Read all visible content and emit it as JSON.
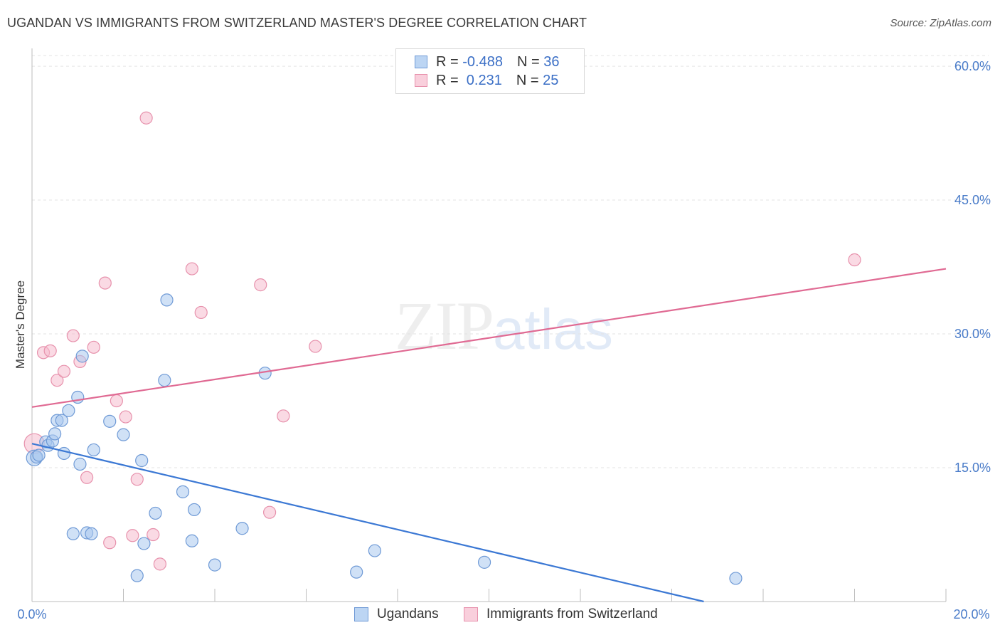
{
  "header": {
    "title": "UGANDAN VS IMMIGRANTS FROM SWITZERLAND MASTER'S DEGREE CORRELATION CHART",
    "source": "Source: ZipAtlas.com"
  },
  "watermark": {
    "zip": "ZIP",
    "atlas": "atlas"
  },
  "legend": {
    "rows": [
      {
        "r_label": "R = ",
        "r_value": "-0.488",
        "n_label": "N = ",
        "n_value": "36"
      },
      {
        "r_label": "R = ",
        "r_value": " 0.231",
        "n_label": "N = ",
        "n_value": "25"
      }
    ]
  },
  "colors": {
    "ugandans_fill": "#a9c8ee",
    "ugandans_stroke": "#6f9ad6",
    "ugandans_line": "#3b78d4",
    "swiss_fill": "#f6bccd",
    "swiss_stroke": "#e791ac",
    "swiss_line": "#e06a93"
  },
  "chart_data": {
    "type": "scatter",
    "title": "UGANDAN VS IMMIGRANTS FROM SWITZERLAND MASTER'S DEGREE CORRELATION CHART",
    "xlabel": "",
    "ylabel": "Master's Degree",
    "xlim": [
      0,
      20
    ],
    "ylim": [
      0,
      62
    ],
    "x_tick_labels": [
      "0.0%",
      "20.0%"
    ],
    "y_ticks": [
      15,
      30,
      45,
      60
    ],
    "y_tick_labels": [
      "15.0%",
      "30.0%",
      "45.0%",
      "60.0%"
    ],
    "grid": true,
    "series": [
      {
        "name": "Ugandans",
        "r": -0.488,
        "n": 36,
        "trend": {
          "x": [
            0,
            14.7
          ],
          "y": [
            17.7,
            0
          ]
        },
        "points": [
          [
            0.05,
            16.1
          ],
          [
            0.1,
            16.2
          ],
          [
            0.15,
            16.4
          ],
          [
            0.3,
            17.9
          ],
          [
            0.35,
            17.5
          ],
          [
            0.45,
            18.0
          ],
          [
            0.5,
            18.8
          ],
          [
            0.55,
            20.3
          ],
          [
            0.65,
            20.3
          ],
          [
            0.7,
            16.6
          ],
          [
            0.8,
            21.4
          ],
          [
            0.9,
            7.6
          ],
          [
            1.0,
            22.9
          ],
          [
            1.05,
            15.4
          ],
          [
            1.1,
            27.5
          ],
          [
            1.2,
            7.7
          ],
          [
            1.3,
            7.6
          ],
          [
            1.35,
            17.0
          ],
          [
            1.7,
            20.2
          ],
          [
            2.0,
            18.7
          ],
          [
            2.3,
            2.9
          ],
          [
            2.4,
            15.8
          ],
          [
            2.45,
            6.5
          ],
          [
            2.7,
            9.9
          ],
          [
            2.9,
            24.8
          ],
          [
            2.95,
            33.8
          ],
          [
            3.3,
            12.3
          ],
          [
            3.5,
            6.8
          ],
          [
            3.55,
            10.3
          ],
          [
            4.0,
            4.1
          ],
          [
            4.6,
            8.2
          ],
          [
            5.1,
            25.6
          ],
          [
            7.1,
            3.3
          ],
          [
            7.5,
            5.7
          ],
          [
            9.9,
            4.4
          ],
          [
            15.4,
            2.6
          ]
        ]
      },
      {
        "name": "Immigrants from Switzerland",
        "r": 0.231,
        "n": 25,
        "trend": {
          "x": [
            0,
            20
          ],
          "y": [
            21.8,
            37.3
          ]
        },
        "points": [
          [
            0.05,
            17.7
          ],
          [
            0.25,
            27.9
          ],
          [
            0.4,
            28.1
          ],
          [
            0.55,
            24.8
          ],
          [
            0.7,
            25.8
          ],
          [
            0.9,
            29.8
          ],
          [
            1.05,
            26.9
          ],
          [
            1.2,
            13.9
          ],
          [
            1.35,
            28.5
          ],
          [
            1.6,
            35.7
          ],
          [
            1.7,
            6.6
          ],
          [
            1.85,
            22.5
          ],
          [
            2.05,
            20.7
          ],
          [
            2.2,
            7.4
          ],
          [
            2.3,
            13.7
          ],
          [
            2.5,
            54.2
          ],
          [
            2.65,
            7.5
          ],
          [
            2.8,
            4.2
          ],
          [
            3.5,
            37.3
          ],
          [
            3.7,
            32.4
          ],
          [
            5.0,
            35.5
          ],
          [
            5.2,
            10.0
          ],
          [
            5.5,
            20.8
          ],
          [
            6.2,
            28.6
          ],
          [
            18.0,
            38.3
          ]
        ]
      }
    ]
  },
  "bottom_legend": {
    "items": [
      {
        "label": "Ugandans"
      },
      {
        "label": "Immigrants from Switzerland"
      }
    ]
  }
}
